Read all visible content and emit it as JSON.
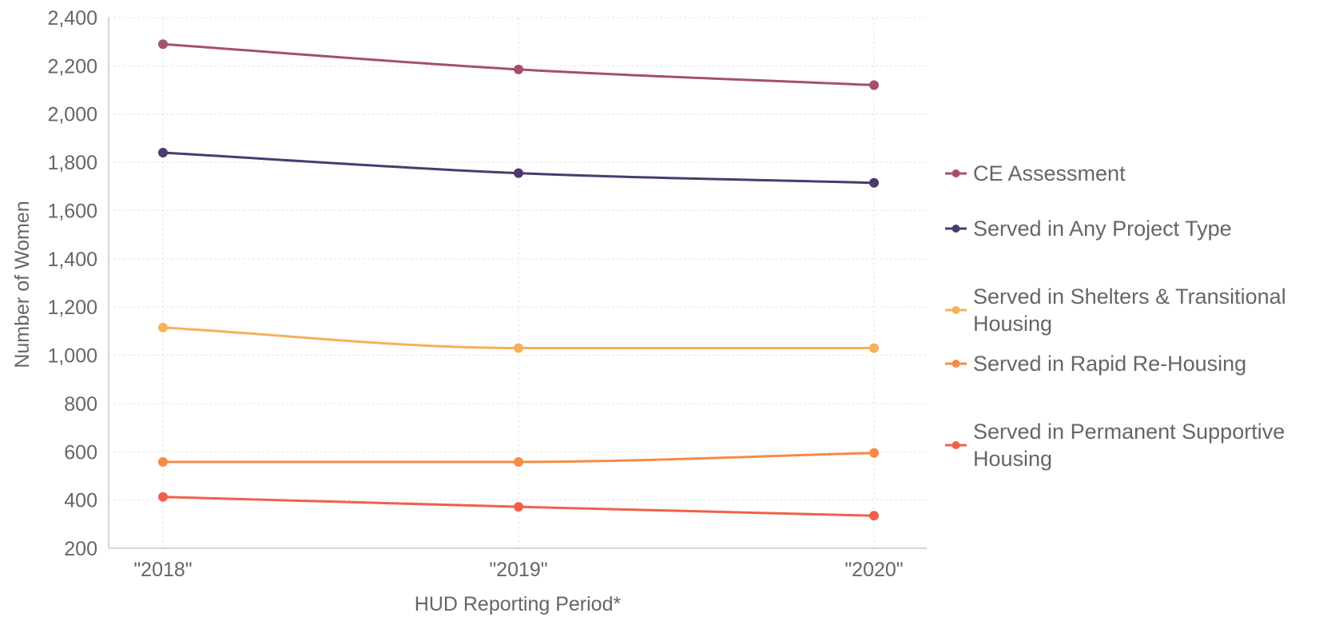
{
  "chart_data": {
    "type": "line",
    "title": "",
    "xlabel": "HUD Reporting Period*",
    "ylabel": "Number of Women",
    "categories": [
      "\"2018\"",
      "\"2019\"",
      "\"2020\""
    ],
    "ylim": [
      200,
      2400
    ],
    "yticks": [
      "2,400",
      "2,200",
      "2,000",
      "1,800",
      "1,600",
      "1,400",
      "1,200",
      "1,000",
      "800",
      "600",
      "400",
      "200"
    ],
    "ytick_values": [
      2400,
      2200,
      2000,
      1800,
      1600,
      1400,
      1200,
      1000,
      800,
      600,
      400,
      200
    ],
    "grid": true,
    "legend_position": "right",
    "series": [
      {
        "name": "CE Assessment",
        "values": [
          2290,
          2185,
          2120
        ],
        "color": "#a4506c",
        "legend_lines": [
          "CE Assessment"
        ]
      },
      {
        "name": "Served in Any Project Type",
        "values": [
          1840,
          1755,
          1715
        ],
        "color": "#4b3a6e",
        "legend_lines": [
          "Served in Any Project Type"
        ]
      },
      {
        "name": "Served in Shelters & Transitional Housing",
        "values": [
          1115,
          1030,
          1030
        ],
        "color": "#f7b05a",
        "legend_lines": [
          "Served in Shelters & Transitional",
          "Housing"
        ]
      },
      {
        "name": "Served in Rapid Re-Housing",
        "values": [
          558,
          558,
          595
        ],
        "color": "#f58b46",
        "legend_lines": [
          "Served in Rapid Re-Housing"
        ]
      },
      {
        "name": "Served in Permanent Supportive Housing",
        "values": [
          413,
          372,
          335
        ],
        "color": "#f0614a",
        "legend_lines": [
          "Served in Permanent Supportive",
          "Housing"
        ]
      }
    ]
  }
}
